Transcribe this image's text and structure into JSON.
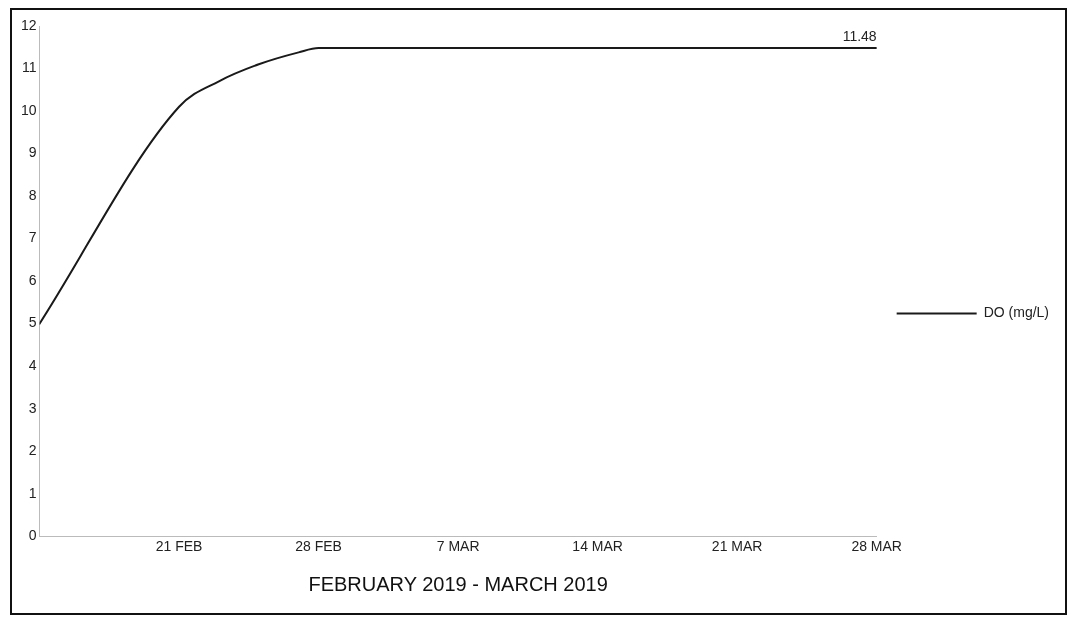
{
  "chart_data": {
    "type": "line",
    "xlabel": "FEBRUARY 2019 - MARCH 2019",
    "x": [
      "2019-02-14",
      "2019-02-21",
      "2019-02-23",
      "2019-02-25",
      "2019-02-27",
      "2019-02-28",
      "2019-03-28"
    ],
    "series": [
      {
        "name": "DO (mg/L)",
        "color": "#1a1a1a",
        "values": [
          5,
          10.1,
          10.7,
          11.1,
          11.38,
          11.48,
          11.48
        ],
        "value_labels": [
          null,
          null,
          null,
          null,
          null,
          null,
          "11.48"
        ]
      }
    ],
    "xlim": [
      "2019-02-14",
      "2019-03-28"
    ],
    "xticks": [
      {
        "value": "2019-02-21",
        "label": "21 FEB"
      },
      {
        "value": "2019-02-28",
        "label": "28 FEB"
      },
      {
        "value": "2019-03-07",
        "label": "7 MAR"
      },
      {
        "value": "2019-03-14",
        "label": "14 MAR"
      },
      {
        "value": "2019-03-21",
        "label": "21 MAR"
      },
      {
        "value": "2019-03-28",
        "label": "28 MAR"
      }
    ],
    "ylim": [
      0,
      12
    ],
    "yticks": [
      0,
      1,
      2,
      3,
      4,
      5,
      6,
      7,
      8,
      9,
      10,
      11,
      12
    ],
    "grid": false,
    "legend": "right",
    "marker": "none",
    "line_style": "solid"
  }
}
